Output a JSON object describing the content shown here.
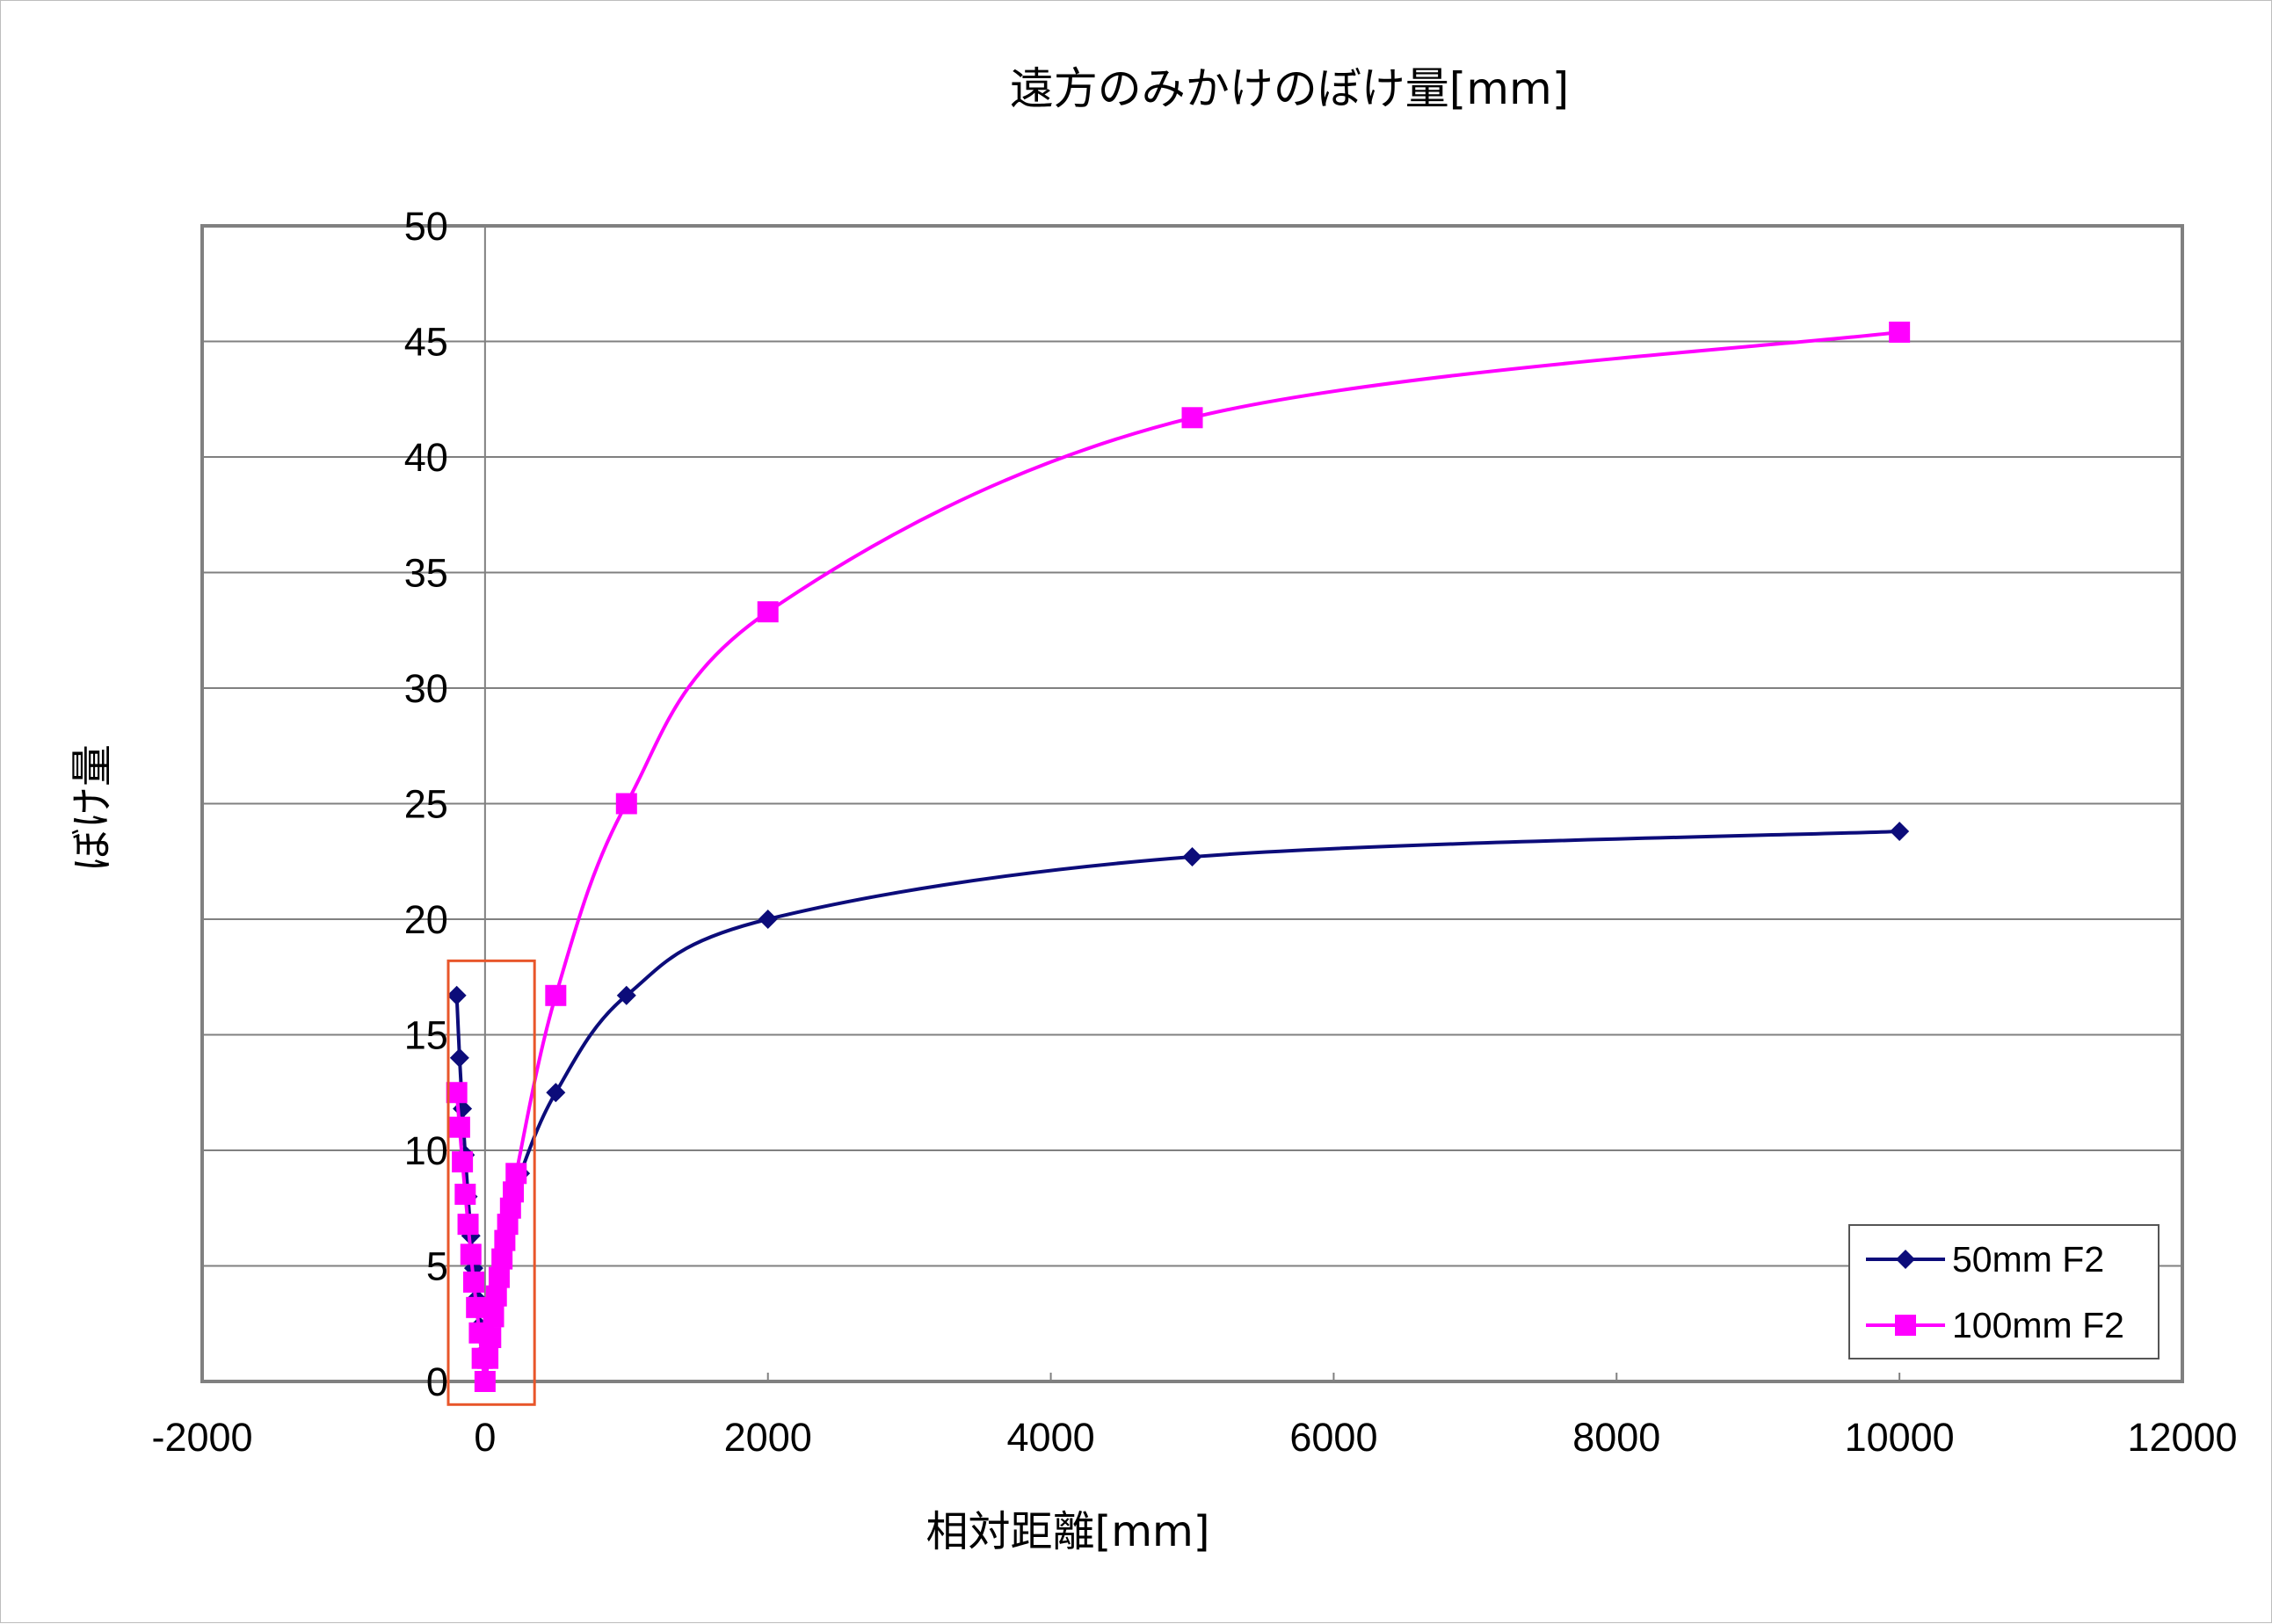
{
  "chart_data": {
    "type": "line",
    "title": "遠方のみかけのぼけ量[mm]",
    "xlabel": "相対距離[mm]",
    "ylabel": "ぼけ量",
    "xlim": [
      -2000,
      12000
    ],
    "ylim": [
      0,
      50
    ],
    "xticks": [
      -2000,
      0,
      2000,
      4000,
      6000,
      8000,
      10000,
      12000
    ],
    "xtick_labels": [
      "-2000",
      "0",
      "2000",
      "4000",
      "6000",
      "8000",
      "10000",
      "12000"
    ],
    "yticks": [
      0,
      5,
      10,
      15,
      20,
      25,
      30,
      35,
      40,
      45,
      50
    ],
    "ytick_labels": [
      "0",
      "5",
      "10",
      "15",
      "20",
      "25",
      "30",
      "35",
      "40",
      "45",
      "50"
    ],
    "grid": "horizontal",
    "legend": "bottom-right",
    "highlight_box": {
      "x": [
        -260,
        350
      ],
      "y": [
        -1,
        18.2
      ],
      "color": "#e8562a"
    },
    "series": [
      {
        "name": "50mm F2",
        "color": "#0c0c7a",
        "marker": "diamond",
        "x": [
          -200,
          -180,
          -160,
          -140,
          -120,
          -100,
          -80,
          -60,
          -40,
          -20,
          0,
          20,
          40,
          60,
          80,
          100,
          120,
          140,
          160,
          180,
          200,
          250,
          500,
          1000,
          2000,
          5000,
          10000
        ],
        "y": [
          16.7,
          14.0,
          11.8,
          9.8,
          8.0,
          6.3,
          4.9,
          3.6,
          2.4,
          1.2,
          0.0,
          1.0,
          2.0,
          2.9,
          3.8,
          4.6,
          5.4,
          6.1,
          6.8,
          7.4,
          7.9,
          9.0,
          12.5,
          16.7,
          20.0,
          22.7,
          23.8
        ]
      },
      {
        "name": "100mm F2",
        "color": "#ff00ff",
        "marker": "square",
        "x": [
          -200,
          -180,
          -160,
          -140,
          -120,
          -100,
          -80,
          -60,
          -40,
          -20,
          0,
          20,
          40,
          60,
          80,
          100,
          120,
          140,
          160,
          180,
          200,
          220,
          500,
          1000,
          2000,
          5000,
          10000
        ],
        "y": [
          12.5,
          11.0,
          9.5,
          8.1,
          6.8,
          5.5,
          4.3,
          3.2,
          2.1,
          1.0,
          0.0,
          1.0,
          1.9,
          2.8,
          3.7,
          4.5,
          5.3,
          6.1,
          6.8,
          7.5,
          8.2,
          9.0,
          16.7,
          25.0,
          33.3,
          41.7,
          45.4
        ]
      }
    ]
  }
}
